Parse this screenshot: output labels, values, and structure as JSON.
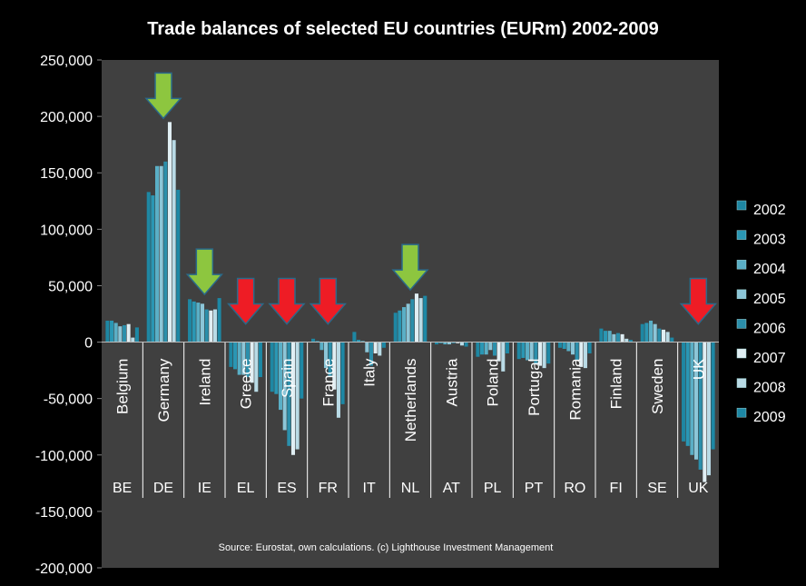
{
  "chart_data": {
    "type": "bar",
    "title": "Trade balances of selected EU countries (EURm) 2002-2009",
    "source": "Source: Eurostat, own calculations. (c) Lighthouse Investment Management",
    "ylim": [
      -200000,
      250000
    ],
    "yticks": [
      250000,
      200000,
      150000,
      100000,
      50000,
      0,
      -50000,
      -100000,
      -150000,
      -200000
    ],
    "ytick_labels": [
      "250,000",
      "200,000",
      "150,000",
      "100,000",
      "50,000",
      "0",
      "-50,000",
      "-100,000",
      "-150,000",
      "-200,000"
    ],
    "categories": [
      "Belgium",
      "Germany",
      "Ireland",
      "Greece",
      "Spain",
      "France",
      "Italy",
      "Netherlands",
      "Austria",
      "Poland",
      "Portugal",
      "Romania",
      "Finland",
      "Sweden",
      "UK"
    ],
    "category_codes": [
      "BE",
      "DE",
      "IE",
      "EL",
      "ES",
      "FR",
      "IT",
      "NL",
      "AT",
      "PL",
      "PT",
      "RO",
      "FI",
      "SE",
      "UK"
    ],
    "series": [
      {
        "name": "2002",
        "values": [
          19000,
          133000,
          38000,
          -22000,
          -44000,
          3000,
          9000,
          26000,
          -2000,
          -13000,
          -15000,
          -5000,
          12000,
          16000,
          -88000
        ]
      },
      {
        "name": "2003",
        "values": [
          19000,
          130000,
          36000,
          -24000,
          -46000,
          1000,
          2000,
          28000,
          -1000,
          -11000,
          -14000,
          -6000,
          10000,
          17000,
          -92000
        ]
      },
      {
        "name": "2004",
        "values": [
          17000,
          156000,
          35000,
          -29000,
          -60000,
          -7000,
          1000,
          31000,
          -2000,
          -11000,
          -16000,
          -8000,
          10000,
          19000,
          -100000
        ]
      },
      {
        "name": "2005",
        "values": [
          14000,
          156000,
          34000,
          -29000,
          -78000,
          -23000,
          -9000,
          34000,
          -2000,
          -7000,
          -17000,
          -11000,
          7000,
          16000,
          -104000
        ]
      },
      {
        "name": "2006",
        "values": [
          15000,
          160000,
          29000,
          -31000,
          -92000,
          -30000,
          -21000,
          38000,
          -1000,
          -12000,
          -19000,
          -16000,
          8000,
          12000,
          -113000
        ]
      },
      {
        "name": "2007",
        "values": [
          16000,
          195000,
          28000,
          -36000,
          -100000,
          -42000,
          -10000,
          43000,
          -1000,
          -17000,
          -21000,
          -22000,
          7000,
          11000,
          -124000
        ]
      },
      {
        "name": "2008",
        "values": [
          4000,
          179000,
          29000,
          -44000,
          -95000,
          -67000,
          -12000,
          39000,
          -3000,
          -26000,
          -23000,
          -23000,
          3000,
          9000,
          -118000
        ]
      },
      {
        "name": "2009",
        "values": [
          13000,
          135000,
          39000,
          -31000,
          -50000,
          -55000,
          -5000,
          41000,
          -4000,
          -10000,
          -19000,
          -10000,
          2000,
          4000,
          -95000
        ]
      }
    ],
    "arrows": [
      {
        "country": "DE",
        "direction": "down",
        "color": "#8dc63f"
      },
      {
        "country": "IE",
        "direction": "down",
        "color": "#8dc63f"
      },
      {
        "country": "EL",
        "direction": "down",
        "color": "#ee1c25"
      },
      {
        "country": "ES",
        "direction": "down",
        "color": "#ee1c25"
      },
      {
        "country": "FR",
        "direction": "down",
        "color": "#ee1c25"
      },
      {
        "country": "NL",
        "direction": "down",
        "color": "#8dc63f"
      },
      {
        "country": "UK",
        "direction": "down",
        "color": "#ee1c25"
      }
    ],
    "legend_position": "right",
    "colors": {
      "background": "#000000",
      "plot_area": "#404040",
      "bar_dark": "#1a7c96",
      "bar_light": "#cfe6ee"
    },
    "grid": false
  }
}
